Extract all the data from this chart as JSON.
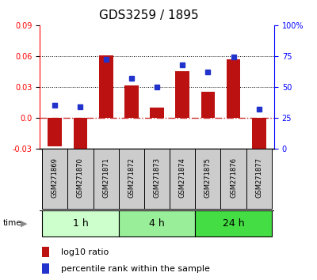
{
  "title": "GDS3259 / 1895",
  "samples": [
    "GSM271869",
    "GSM271870",
    "GSM271871",
    "GSM271872",
    "GSM271873",
    "GSM271874",
    "GSM271875",
    "GSM271876",
    "GSM271877"
  ],
  "log10_ratio": [
    -0.028,
    -0.032,
    0.061,
    0.031,
    0.01,
    0.045,
    0.025,
    0.057,
    -0.035
  ],
  "percentile_rank": [
    35,
    34,
    72,
    57,
    50,
    68,
    62,
    74,
    32
  ],
  "ylim_left": [
    -0.03,
    0.09
  ],
  "ylim_right": [
    0,
    100
  ],
  "yticks_left": [
    -0.03,
    0.0,
    0.03,
    0.06,
    0.09
  ],
  "yticks_right": [
    0,
    25,
    50,
    75,
    100
  ],
  "groups": [
    {
      "label": "1 h",
      "start": 0,
      "end": 3,
      "color": "#ccffcc"
    },
    {
      "label": "4 h",
      "start": 3,
      "end": 6,
      "color": "#99ee99"
    },
    {
      "label": "24 h",
      "start": 6,
      "end": 9,
      "color": "#44dd44"
    }
  ],
  "bar_color": "#bb1111",
  "dot_color": "#2233cc",
  "zero_line_color": "#cc3333",
  "sample_bg": "#cccccc",
  "title_fontsize": 11,
  "tick_fontsize": 7,
  "sample_fontsize": 6,
  "group_fontsize": 9,
  "legend_fontsize": 8
}
